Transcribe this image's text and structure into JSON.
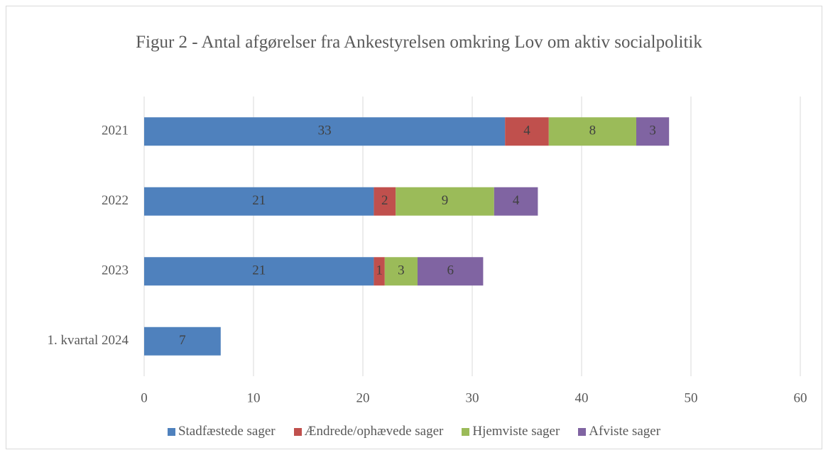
{
  "chart_data": {
    "type": "bar",
    "orientation": "horizontal",
    "stacked": true,
    "title": "Figur 2 - Antal afgørelser fra Ankestyrelsen omkring Lov om aktiv socialpolitik",
    "categories": [
      "2021",
      "2022",
      "2023",
      "1. kvartal 2024"
    ],
    "series": [
      {
        "name": "Stadfæstede sager",
        "color": "#4f81bd",
        "values": [
          33,
          21,
          21,
          7
        ]
      },
      {
        "name": "Ændrede/ophævede sager",
        "color": "#c0504d",
        "values": [
          4,
          2,
          1,
          null
        ]
      },
      {
        "name": "Hjemviste sager",
        "color": "#9bbb59",
        "values": [
          8,
          9,
          3,
          null
        ]
      },
      {
        "name": "Afviste sager",
        "color": "#8064a2",
        "values": [
          3,
          4,
          6,
          null
        ]
      }
    ],
    "xlim": [
      0,
      60
    ],
    "xticks": [
      0,
      10,
      20,
      30,
      40,
      50,
      60
    ],
    "grid": true,
    "legend": "bottom"
  }
}
